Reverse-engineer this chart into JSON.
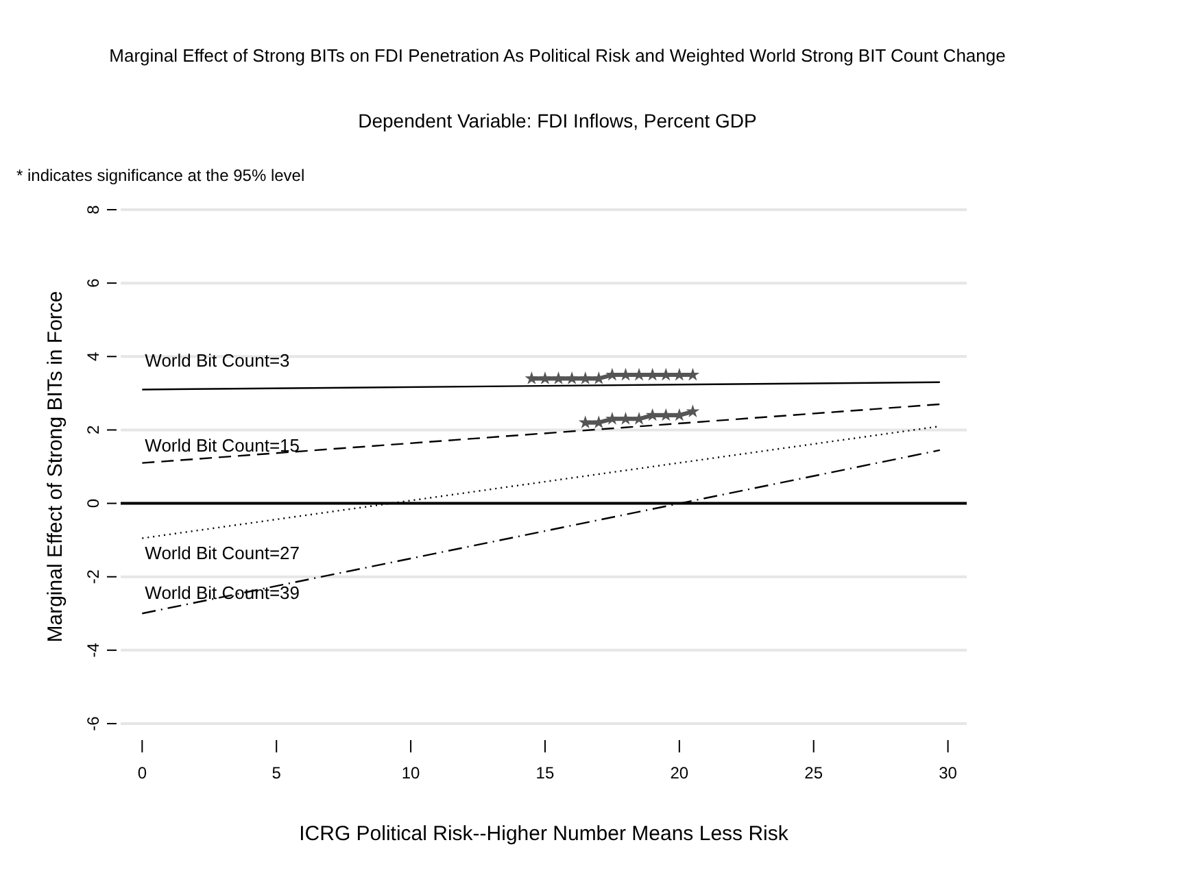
{
  "chart_data": {
    "type": "line",
    "title": "Marginal Effect of Strong BITs on FDI Penetration As Political Risk and Weighted World Strong BIT Count Change",
    "subtitle": "Dependent Variable: FDI Inflows, Percent GDP",
    "xlabel": "ICRG Political Risk--Higher Number Means Less Risk",
    "ylabel": "Marginal Effect of Strong BITs in Force",
    "annotations": [
      "* indicates significance at the 95% level"
    ],
    "xlim": [
      -0.8,
      30.7
    ],
    "xticks": [
      0,
      5,
      10,
      15,
      20,
      25,
      30
    ],
    "ylim": [
      -6,
      8
    ],
    "yticks": [
      -6,
      -4,
      -2,
      0,
      2,
      4,
      6,
      8
    ],
    "grid": "y",
    "legend": "left",
    "marker": "none",
    "ref_lines": [
      {
        "axis": "y",
        "value": 0,
        "color": "#000000"
      }
    ],
    "series": [
      {
        "name": "World Bit Count=3",
        "color": "#000000",
        "line_style": "solid",
        "x": [
          0,
          29.7
        ],
        "values": [
          3.1,
          3.3
        ]
      },
      {
        "name": "World Bit Count=15",
        "color": "#000000",
        "line_style": "dashed",
        "x": [
          0,
          29.7
        ],
        "values": [
          1.1,
          2.7
        ]
      },
      {
        "name": "World Bit Count=27",
        "color": "#000000",
        "line_style": "dotted",
        "x": [
          0,
          29.7
        ],
        "values": [
          -0.95,
          2.1
        ]
      },
      {
        "name": "World Bit Count=39",
        "color": "#000000",
        "line_style": "dashdot",
        "x": [
          0,
          29.7
        ],
        "values": [
          -3.0,
          1.45
        ]
      },
      {
        "color": "#555555",
        "marker": "star",
        "line_style": "solid",
        "x": [
          14.5,
          15,
          15.5,
          16,
          16.5,
          17,
          17.5,
          18,
          18.5,
          19,
          19.5,
          20,
          20.5
        ],
        "values": [
          3.4,
          3.4,
          3.4,
          3.4,
          3.4,
          3.4,
          3.5,
          3.5,
          3.5,
          3.5,
          3.5,
          3.5,
          3.5
        ]
      },
      {
        "color": "#555555",
        "marker": "star",
        "line_style": "solid",
        "x": [
          16.5,
          17,
          17.5,
          18,
          18.5,
          19,
          19.5,
          20,
          20.5
        ],
        "values": [
          2.2,
          2.2,
          2.3,
          2.3,
          2.3,
          2.4,
          2.4,
          2.4,
          2.5
        ]
      }
    ]
  }
}
